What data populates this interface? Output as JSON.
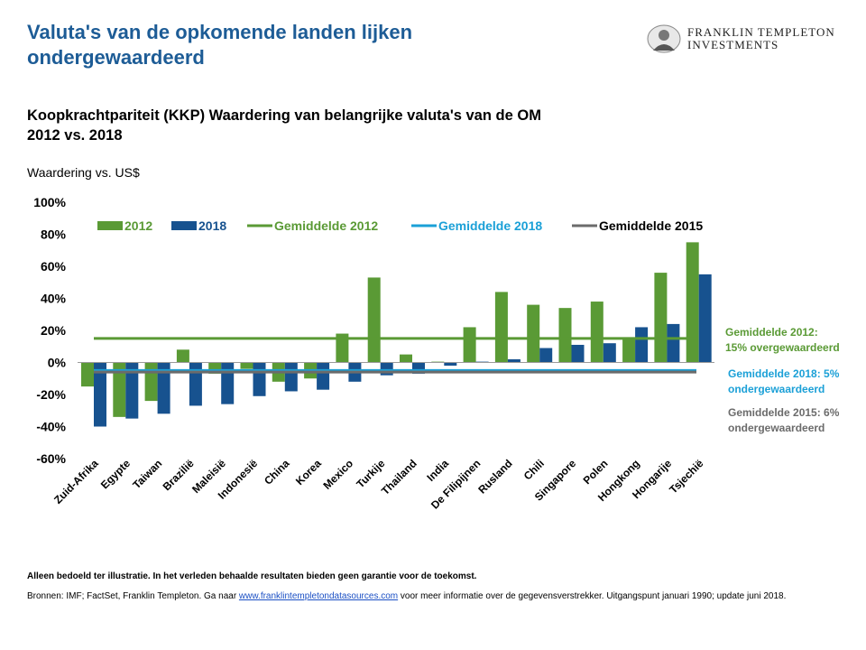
{
  "header": {
    "title": "Valuta's van de opkomende landen lijken ondergewaardeerd",
    "logo_line1": "FRANKLIN TEMPLETON",
    "logo_line2": "INVESTMENTS"
  },
  "subtitle_line1": "Koopkrachtpariteit (KKP) Waardering van belangrijke valuta's van de OM",
  "subtitle_line2": "2012 vs. 2018",
  "unit_label": "Waardering vs. US$",
  "colors": {
    "s2012": "#5a9a35",
    "s2018": "#17528f",
    "avg2012": "#5a9a35",
    "avg2018": "#1ba0d7",
    "avg2015": "#6b6b6b"
  },
  "chart_data": {
    "type": "bar",
    "categories": [
      "Zuid-Afrika",
      "Egypte",
      "Taiwan",
      "Brazilië",
      "Maleisië",
      "Indonesië",
      "China",
      "Korea",
      "Mexico",
      "Turkije",
      "Thailand",
      "India",
      "De Filipijnen",
      "Rusland",
      "Chili",
      "Singapore",
      "Polen",
      "Hongkong",
      "Hongarije",
      "Tsjechië"
    ],
    "series": [
      {
        "name": "2012",
        "values": [
          -15,
          -34,
          -24,
          8,
          -7,
          -4,
          -12,
          -10,
          18,
          53,
          5,
          0.5,
          22,
          44,
          36,
          34,
          38,
          15,
          56,
          75
        ]
      },
      {
        "name": "2018",
        "values": [
          -40,
          -35,
          -32,
          -27,
          -26,
          -21,
          -18,
          -17,
          -12,
          -8,
          -7,
          -2,
          0.5,
          2,
          9,
          11,
          12,
          22,
          24,
          55
        ]
      }
    ],
    "averages": [
      {
        "name": "Gemiddelde 2012",
        "value": 15
      },
      {
        "name": "Gemiddelde 2018",
        "value": -5
      },
      {
        "name": "Gemiddelde 2015",
        "value": -6
      }
    ],
    "yticks": [
      "100%",
      "80%",
      "60%",
      "40%",
      "20%",
      "0%",
      "-20%",
      "-40%",
      "-60%"
    ],
    "ylim": [
      -60,
      100
    ],
    "grid": false,
    "legend_position": "top",
    "annotations": {
      "avg2012_l1": "Gemiddelde 2012:",
      "avg2012_l2": "15%  overgewaardeerd",
      "avg2018_l1": "Gemiddelde 2018: 5%",
      "avg2018_l2": "ondergewaardeerd",
      "avg2015_l1": "Gemiddelde 2015: 6%",
      "avg2015_l2": "ondergewaardeerd"
    }
  },
  "footer": {
    "disclaimer": "Alleen bedoeld ter illustratie. In het verleden behaalde resultaten bieden geen garantie voor de toekomst.",
    "sources_before": "Bronnen: IMF; FactSet,  Franklin Templeton. Ga naar ",
    "sources_link": "www.franklintempletondatasources.com",
    "sources_after": "  voor meer informatie  over de gegevensverstrekker. Uitgangspunt  januari 1990; update juni 2018."
  }
}
